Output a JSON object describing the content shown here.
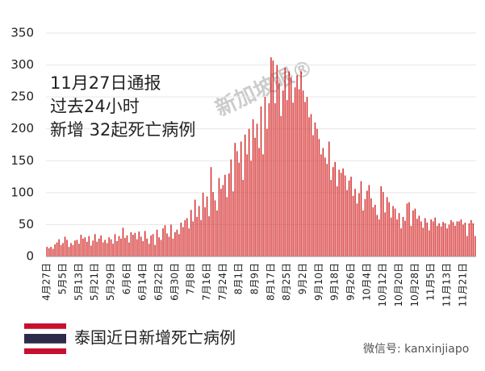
{
  "chart_data": {
    "type": "bar",
    "annotation": [
      "11月27日通报",
      "过去24小时",
      "新增 32起死亡病例"
    ],
    "legend_label": "泰国近日新增死亡病例",
    "watermark": "新加坡眼®",
    "credit": "微信号: kanxinjiapo",
    "color": "#d42a2a",
    "ylim": [
      0,
      350
    ],
    "yticks": [
      0,
      50,
      100,
      150,
      200,
      250,
      300,
      350
    ],
    "grid": true,
    "categories": [
      "4月27日",
      null,
      null,
      null,
      null,
      null,
      null,
      null,
      "5月5日",
      null,
      null,
      null,
      null,
      null,
      null,
      null,
      "5月13日",
      null,
      null,
      null,
      null,
      null,
      null,
      null,
      "5月21日",
      null,
      null,
      null,
      null,
      null,
      null,
      null,
      "5月29日",
      null,
      null,
      null,
      null,
      null,
      null,
      null,
      "6月6日",
      null,
      null,
      null,
      null,
      null,
      null,
      null,
      "6月14日",
      null,
      null,
      null,
      null,
      null,
      null,
      null,
      "6月22日",
      null,
      null,
      null,
      null,
      null,
      null,
      null,
      "6月30日",
      null,
      null,
      null,
      null,
      null,
      null,
      null,
      "7月8日",
      null,
      null,
      null,
      null,
      null,
      null,
      null,
      "7月16日",
      null,
      null,
      null,
      null,
      null,
      null,
      null,
      "7月24日",
      null,
      null,
      null,
      null,
      null,
      null,
      null,
      "8月1日",
      null,
      null,
      null,
      null,
      null,
      null,
      null,
      "8月9日",
      null,
      null,
      null,
      null,
      null,
      null,
      null,
      "8月17日",
      null,
      null,
      null,
      null,
      null,
      null,
      null,
      "8月25日",
      null,
      null,
      null,
      null,
      null,
      null,
      null,
      "9月2日",
      null,
      null,
      null,
      null,
      null,
      null,
      null,
      "9月10日",
      null,
      null,
      null,
      null,
      null,
      null,
      null,
      "9月18日",
      null,
      null,
      null,
      null,
      null,
      null,
      null,
      "9月26日",
      null,
      null,
      null,
      null,
      null,
      null,
      null,
      "10月4日",
      null,
      null,
      null,
      null,
      null,
      null,
      null,
      "10月12日",
      null,
      null,
      null,
      null,
      null,
      null,
      null,
      "10月20日",
      null,
      null,
      null,
      null,
      null,
      null,
      null,
      "10月28日",
      null,
      null,
      null,
      null,
      null,
      null,
      null,
      "11月5日",
      null,
      null,
      null,
      null,
      null,
      null,
      null,
      "11月13日",
      null,
      null,
      null,
      null,
      null,
      null,
      null,
      "11月21日",
      null,
      null,
      null,
      null,
      null,
      null
    ],
    "values": [
      15,
      13,
      15,
      12,
      19,
      22,
      27,
      18,
      21,
      31,
      26,
      15,
      21,
      18,
      25,
      26,
      20,
      34,
      28,
      30,
      23,
      32,
      17,
      25,
      35,
      23,
      28,
      33,
      22,
      26,
      21,
      30,
      27,
      20,
      35,
      24,
      32,
      28,
      45,
      29,
      33,
      22,
      38,
      34,
      37,
      27,
      39,
      31,
      24,
      40,
      28,
      20,
      33,
      35,
      18,
      42,
      30,
      26,
      44,
      49,
      36,
      31,
      50,
      28,
      38,
      42,
      35,
      53,
      46,
      57,
      60,
      44,
      73,
      55,
      89,
      62,
      79,
      57,
      100,
      77,
      94,
      63,
      140,
      101,
      88,
      72,
      123,
      106,
      112,
      128,
      93,
      130,
      152,
      102,
      178,
      165,
      147,
      180,
      120,
      191,
      160,
      200,
      150,
      215,
      186,
      208,
      170,
      235,
      160,
      250,
      200,
      240,
      312,
      307,
      240,
      300,
      272,
      220,
      260,
      296,
      245,
      290,
      280,
      241,
      265,
      284,
      262,
      290,
      260,
      242,
      250,
      218,
      223,
      190,
      210,
      200,
      184,
      160,
      170,
      155,
      145,
      180,
      120,
      140,
      148,
      110,
      136,
      131,
      138,
      127,
      104,
      119,
      125,
      95,
      106,
      83,
      99,
      118,
      72,
      90,
      103,
      112,
      91,
      77,
      81,
      65,
      58,
      110,
      101,
      69,
      93,
      85,
      61,
      79,
      75,
      58,
      68,
      44,
      62,
      56,
      83,
      85,
      48,
      72,
      75,
      59,
      64,
      55,
      45,
      60,
      53,
      41,
      58,
      55,
      61,
      48,
      52,
      47,
      54,
      52,
      44,
      50,
      57,
      54,
      48,
      55,
      55,
      58,
      50,
      53,
      32,
      52,
      57,
      52,
      32
    ]
  }
}
